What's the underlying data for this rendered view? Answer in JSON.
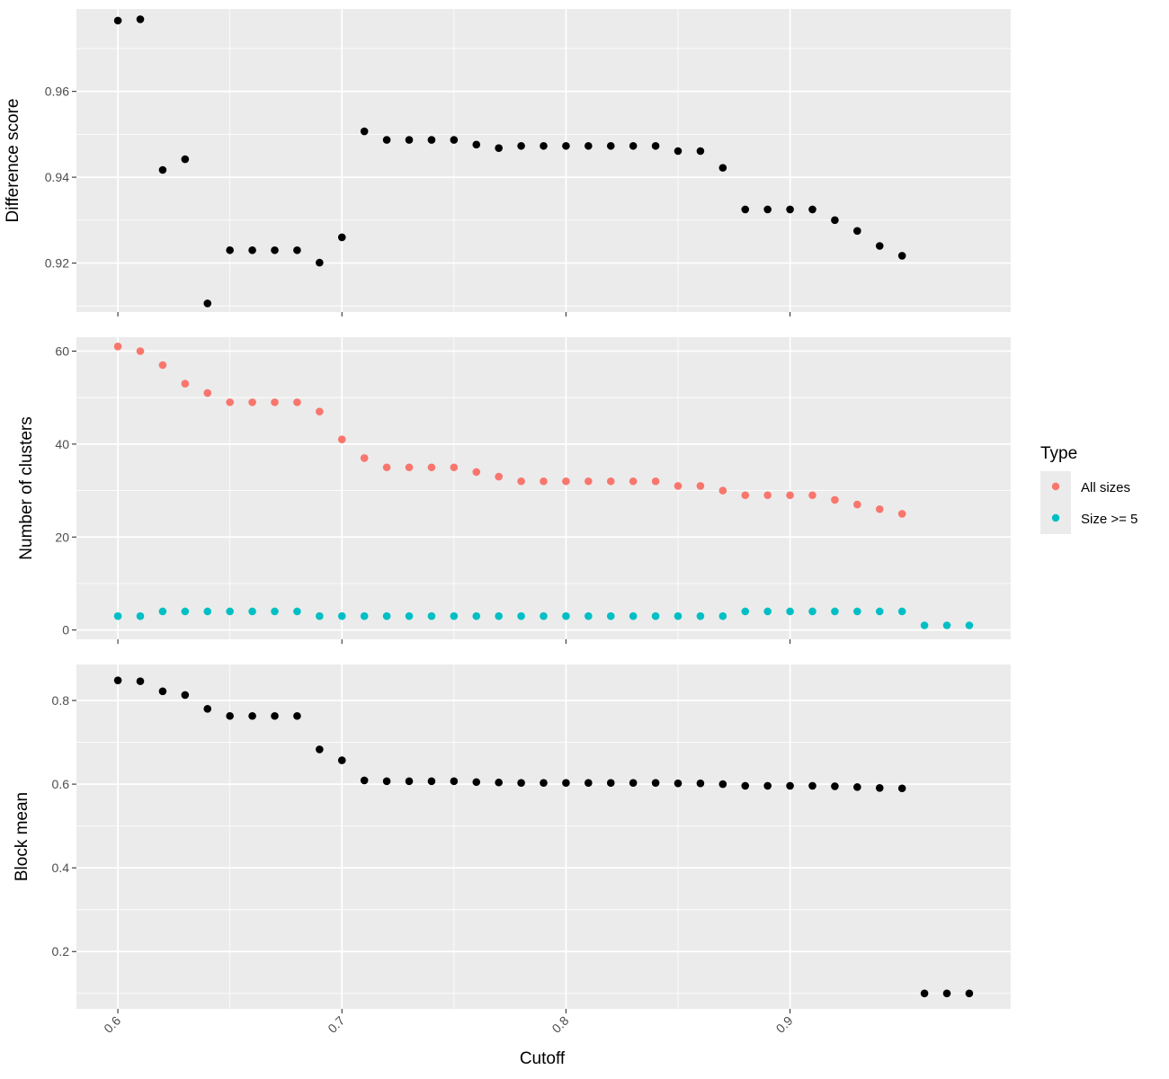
{
  "chart_data": [
    {
      "type": "scatter",
      "ylabel": "Difference score",
      "xlim": [
        0.5815,
        0.9985
      ],
      "ylim": [
        0.9086,
        0.9792
      ],
      "yticks": [
        "0.92",
        "0.94",
        "0.96"
      ],
      "ytick_values": [
        0.92,
        0.94,
        0.96
      ],
      "grid": true,
      "series": [
        {
          "color": "#000000",
          "x": [
            0.6,
            0.61,
            0.62,
            0.63,
            0.64,
            0.65,
            0.66,
            0.67,
            0.68,
            0.69,
            0.7,
            0.71,
            0.72,
            0.73,
            0.74,
            0.75,
            0.76,
            0.77,
            0.78,
            0.79,
            0.8,
            0.81,
            0.82,
            0.83,
            0.84,
            0.85,
            0.86,
            0.87,
            0.88,
            0.89,
            0.9,
            0.91,
            0.92,
            0.93,
            0.94,
            0.95
          ],
          "y": [
            0.9765,
            0.9768,
            0.9417,
            0.9442,
            0.9106,
            0.923,
            0.923,
            0.923,
            0.923,
            0.9201,
            0.926,
            0.9507,
            0.9487,
            0.9487,
            0.9487,
            0.9487,
            0.9476,
            0.9468,
            0.9473,
            0.9473,
            0.9473,
            0.9473,
            0.9473,
            0.9473,
            0.9473,
            0.9461,
            0.9461,
            0.9422,
            0.9325,
            0.9325,
            0.9325,
            0.9325,
            0.93,
            0.9275,
            0.924,
            0.9217
          ]
        }
      ]
    },
    {
      "type": "scatter",
      "ylabel": "Number of clusters",
      "xlim": [
        0.5815,
        0.9985
      ],
      "ylim": [
        -2,
        63
      ],
      "yticks": [
        "0",
        "20",
        "40",
        "60"
      ],
      "ytick_values": [
        0,
        20,
        40,
        60
      ],
      "grid": true,
      "legend": {
        "title": "Type",
        "position": "right"
      },
      "series": [
        {
          "name": "All sizes",
          "color": "#F8766D",
          "x": [
            0.6,
            0.61,
            0.62,
            0.63,
            0.64,
            0.65,
            0.66,
            0.67,
            0.68,
            0.69,
            0.7,
            0.71,
            0.72,
            0.73,
            0.74,
            0.75,
            0.76,
            0.77,
            0.78,
            0.79,
            0.8,
            0.81,
            0.82,
            0.83,
            0.84,
            0.85,
            0.86,
            0.87,
            0.88,
            0.89,
            0.9,
            0.91,
            0.92,
            0.93,
            0.94,
            0.95
          ],
          "y": [
            61,
            60,
            57,
            53,
            51,
            49,
            49,
            49,
            49,
            47,
            41,
            37,
            35,
            35,
            35,
            35,
            34,
            33,
            32,
            32,
            32,
            32,
            32,
            32,
            32,
            31,
            31,
            30,
            29,
            29,
            29,
            29,
            28,
            27,
            26,
            25
          ]
        },
        {
          "name": "Size >= 5",
          "color": "#00BFC4",
          "x": [
            0.6,
            0.61,
            0.62,
            0.63,
            0.64,
            0.65,
            0.66,
            0.67,
            0.68,
            0.69,
            0.7,
            0.71,
            0.72,
            0.73,
            0.74,
            0.75,
            0.76,
            0.77,
            0.78,
            0.79,
            0.8,
            0.81,
            0.82,
            0.83,
            0.84,
            0.85,
            0.86,
            0.87,
            0.88,
            0.89,
            0.9,
            0.91,
            0.92,
            0.93,
            0.94,
            0.95,
            0.96,
            0.97,
            0.98
          ],
          "y": [
            3,
            3,
            4,
            4,
            4,
            4,
            4,
            4,
            4,
            3,
            3,
            3,
            3,
            3,
            3,
            3,
            3,
            3,
            3,
            3,
            3,
            3,
            3,
            3,
            3,
            3,
            3,
            3,
            4,
            4,
            4,
            4,
            4,
            4,
            4,
            4,
            1,
            1,
            1
          ]
        }
      ]
    },
    {
      "type": "scatter",
      "ylabel": "Block mean",
      "xlabel": "Cutoff",
      "xlim": [
        0.5815,
        0.9985
      ],
      "ylim": [
        0.063,
        0.886
      ],
      "yticks": [
        "0.2",
        "0.4",
        "0.6",
        "0.8"
      ],
      "ytick_values": [
        0.2,
        0.4,
        0.6,
        0.8
      ],
      "xticks": [
        "0.6",
        "0.7",
        "0.8",
        "0.9"
      ],
      "xtick_values": [
        0.6,
        0.7,
        0.8,
        0.9
      ],
      "grid": true,
      "series": [
        {
          "color": "#000000",
          "x": [
            0.6,
            0.61,
            0.62,
            0.63,
            0.64,
            0.65,
            0.66,
            0.67,
            0.68,
            0.69,
            0.7,
            0.71,
            0.72,
            0.73,
            0.74,
            0.75,
            0.76,
            0.77,
            0.78,
            0.79,
            0.8,
            0.81,
            0.82,
            0.83,
            0.84,
            0.85,
            0.86,
            0.87,
            0.88,
            0.89,
            0.9,
            0.91,
            0.92,
            0.93,
            0.94,
            0.95,
            0.96,
            0.97,
            0.98
          ],
          "y": [
            0.848,
            0.846,
            0.822,
            0.813,
            0.78,
            0.763,
            0.763,
            0.763,
            0.763,
            0.683,
            0.657,
            0.609,
            0.607,
            0.607,
            0.607,
            0.607,
            0.605,
            0.604,
            0.603,
            0.603,
            0.603,
            0.603,
            0.603,
            0.603,
            0.603,
            0.602,
            0.602,
            0.6,
            0.596,
            0.596,
            0.596,
            0.596,
            0.595,
            0.593,
            0.591,
            0.59,
            0.1,
            0.1,
            0.1
          ]
        }
      ]
    }
  ]
}
